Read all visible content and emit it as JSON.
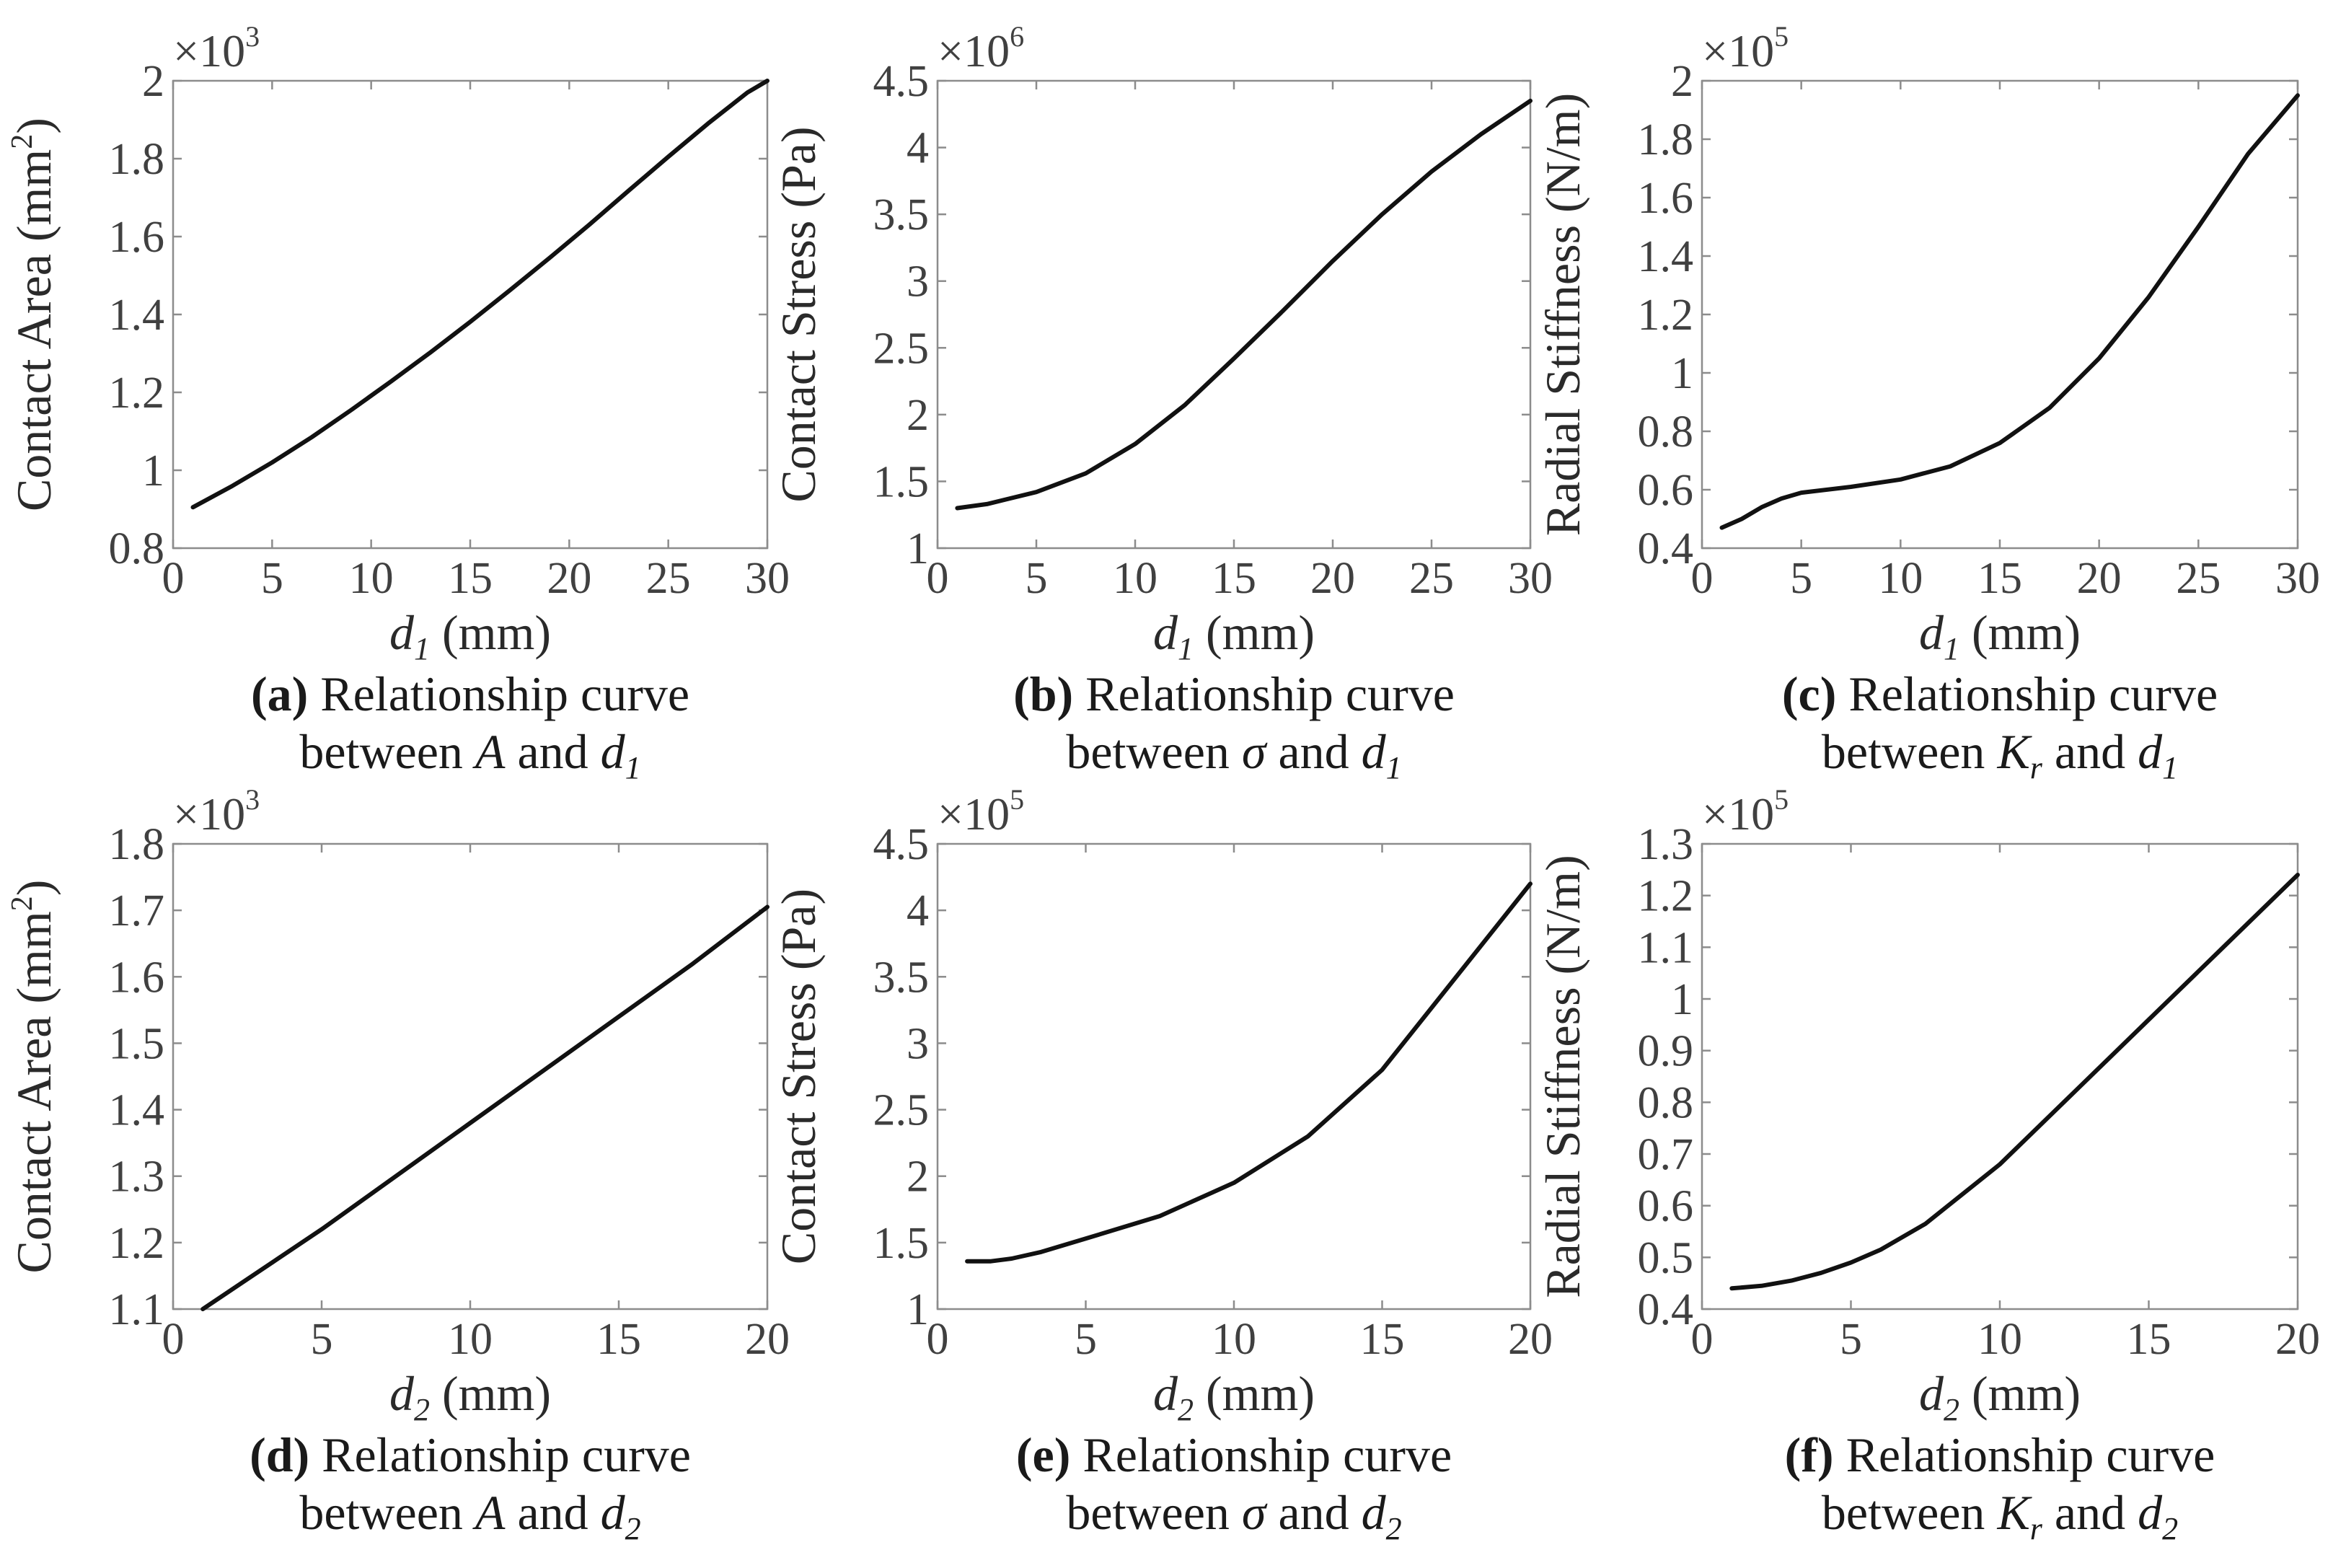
{
  "chart_data": [
    {
      "id": "a",
      "type": "line",
      "multiplier_base": "×10",
      "multiplier_exp": "3",
      "xlabel_var": "d",
      "xlabel_sub": "1",
      "xlabel_unit": "(mm)",
      "ylabel_main": "Contact Area  (mm",
      "ylabel_sup": "2",
      "ylabel_close": ")",
      "xlim": [
        0,
        30
      ],
      "ylim": [
        0.8,
        2
      ],
      "xticks": [
        0,
        5,
        10,
        15,
        20,
        25,
        30
      ],
      "xtick_labels": [
        "0",
        "5",
        "10",
        "15",
        "20",
        "25",
        "30"
      ],
      "yticks": [
        0.8,
        1,
        1.2,
        1.4,
        1.6,
        1.8,
        2
      ],
      "ytick_labels": [
        "0.8",
        "1",
        "1.2",
        "1.4",
        "1.6",
        "1.8",
        "2"
      ],
      "x": [
        1,
        3,
        5,
        7,
        9,
        11,
        13,
        15,
        17,
        19,
        21,
        23,
        25,
        27,
        29,
        30
      ],
      "y": [
        0.905,
        0.96,
        1.02,
        1.085,
        1.155,
        1.228,
        1.303,
        1.381,
        1.462,
        1.545,
        1.63,
        1.718,
        1.805,
        1.89,
        1.97,
        2.0
      ],
      "caption_tag": "(a)",
      "caption_line1": " Relationship curve",
      "caption_line2_pre": "between ",
      "caption_sym": "A",
      "caption_sym_sub": "",
      "caption_and": " and ",
      "caption_var": "d",
      "caption_var_sub": "1"
    },
    {
      "id": "b",
      "type": "line",
      "multiplier_base": "×10",
      "multiplier_exp": "6",
      "xlabel_var": "d",
      "xlabel_sub": "1",
      "xlabel_unit": "(mm)",
      "ylabel_main": "Contact Stress  (Pa)",
      "ylabel_sup": "",
      "ylabel_close": "",
      "xlim": [
        0,
        30
      ],
      "ylim": [
        1,
        4.5
      ],
      "xticks": [
        0,
        5,
        10,
        15,
        20,
        25,
        30
      ],
      "xtick_labels": [
        "0",
        "5",
        "10",
        "15",
        "20",
        "25",
        "30"
      ],
      "yticks": [
        1,
        1.5,
        2,
        2.5,
        3,
        3.5,
        4,
        4.5
      ],
      "ytick_labels": [
        "1",
        "1.5",
        "2",
        "2.5",
        "3",
        "3.5",
        "4",
        "4.5"
      ],
      "x": [
        1,
        2.5,
        5,
        7.5,
        10,
        12.5,
        15,
        17.5,
        20,
        22.5,
        25,
        27.5,
        30
      ],
      "y": [
        1.3,
        1.33,
        1.42,
        1.56,
        1.78,
        2.07,
        2.42,
        2.78,
        3.15,
        3.5,
        3.82,
        4.1,
        4.35
      ],
      "caption_tag": "(b)",
      "caption_line1": " Relationship curve",
      "caption_line2_pre": "between ",
      "caption_sym": "σ",
      "caption_sym_sub": "",
      "caption_and": " and ",
      "caption_var": "d",
      "caption_var_sub": "1"
    },
    {
      "id": "c",
      "type": "line",
      "multiplier_base": "×10",
      "multiplier_exp": "5",
      "xlabel_var": "d",
      "xlabel_sub": "1",
      "xlabel_unit": "(mm)",
      "ylabel_main": "Radial Stiffness  (N/m)",
      "ylabel_sup": "",
      "ylabel_close": "",
      "xlim": [
        0,
        30
      ],
      "ylim": [
        0.4,
        2
      ],
      "xticks": [
        0,
        5,
        10,
        15,
        20,
        25,
        30
      ],
      "xtick_labels": [
        "0",
        "5",
        "10",
        "15",
        "20",
        "25",
        "30"
      ],
      "yticks": [
        0.4,
        0.6,
        0.8,
        1,
        1.2,
        1.4,
        1.6,
        1.8,
        2
      ],
      "ytick_labels": [
        "0.4",
        "0.6",
        "0.8",
        "1",
        "1.2",
        "1.4",
        "1.6",
        "1.8",
        "2"
      ],
      "x": [
        1,
        2,
        3,
        4,
        5,
        7.5,
        10,
        12.5,
        15,
        17.5,
        20,
        22.5,
        25,
        27.5,
        30
      ],
      "y": [
        0.47,
        0.5,
        0.54,
        0.57,
        0.59,
        0.61,
        0.635,
        0.68,
        0.76,
        0.88,
        1.05,
        1.26,
        1.5,
        1.75,
        1.95
      ],
      "caption_tag": "(c)",
      "caption_line1": " Relationship curve",
      "caption_line2_pre": "between ",
      "caption_sym": "K",
      "caption_sym_sub": "r",
      "caption_and": " and ",
      "caption_var": "d",
      "caption_var_sub": "1"
    },
    {
      "id": "d",
      "type": "line",
      "multiplier_base": "×10",
      "multiplier_exp": "3",
      "xlabel_var": "d",
      "xlabel_sub": "2",
      "xlabel_unit": "(mm)",
      "ylabel_main": "Contact Area  (mm",
      "ylabel_sup": "2",
      "ylabel_close": ")",
      "xlim": [
        0,
        20
      ],
      "ylim": [
        1.1,
        1.8
      ],
      "xticks": [
        0,
        5,
        10,
        15,
        20
      ],
      "xtick_labels": [
        "0",
        "5",
        "10",
        "15",
        "20"
      ],
      "yticks": [
        1.1,
        1.2,
        1.3,
        1.4,
        1.5,
        1.6,
        1.7,
        1.8
      ],
      "ytick_labels": [
        "1.1",
        "1.2",
        "1.3",
        "1.4",
        "1.5",
        "1.6",
        "1.7",
        "1.8"
      ],
      "x": [
        1,
        2.5,
        5,
        7.5,
        10,
        12.5,
        15,
        17.5,
        20
      ],
      "y": [
        1.1,
        1.145,
        1.22,
        1.3,
        1.38,
        1.46,
        1.54,
        1.62,
        1.705
      ],
      "caption_tag": "(d)",
      "caption_line1": " Relationship curve",
      "caption_line2_pre": "between ",
      "caption_sym": "A",
      "caption_sym_sub": "",
      "caption_and": " and ",
      "caption_var": "d",
      "caption_var_sub": "2"
    },
    {
      "id": "e",
      "type": "line",
      "multiplier_base": "×10",
      "multiplier_exp": "5",
      "xlabel_var": "d",
      "xlabel_sub": "2",
      "xlabel_unit": "(mm)",
      "ylabel_main": "Contact Stress  (Pa)",
      "ylabel_sup": "",
      "ylabel_close": "",
      "xlim": [
        0,
        20
      ],
      "ylim": [
        1,
        4.5
      ],
      "xticks": [
        0,
        5,
        10,
        15,
        20
      ],
      "xtick_labels": [
        "0",
        "5",
        "10",
        "15",
        "20"
      ],
      "yticks": [
        1,
        1.5,
        2,
        2.5,
        3,
        3.5,
        4,
        4.5
      ],
      "ytick_labels": [
        "1",
        "1.5",
        "2",
        "2.5",
        "3",
        "3.5",
        "4",
        "4.5"
      ],
      "x": [
        1,
        1.8,
        2.5,
        3.5,
        5,
        7.5,
        10,
        12.5,
        15,
        17.5,
        20
      ],
      "y": [
        1.36,
        1.36,
        1.38,
        1.43,
        1.53,
        1.7,
        1.95,
        2.3,
        2.8,
        3.5,
        4.2
      ],
      "caption_tag": "(e)",
      "caption_line1": " Relationship curve",
      "caption_line2_pre": "between ",
      "caption_sym": "σ",
      "caption_sym_sub": "",
      "caption_and": " and ",
      "caption_var": "d",
      "caption_var_sub": "2"
    },
    {
      "id": "f",
      "type": "line",
      "multiplier_base": "×10",
      "multiplier_exp": "5",
      "xlabel_var": "d",
      "xlabel_sub": "2",
      "xlabel_unit": "(mm)",
      "ylabel_main": "Radial Stiffness  (N/m)",
      "ylabel_sup": "",
      "ylabel_close": "",
      "xlim": [
        0,
        20
      ],
      "ylim": [
        0.4,
        1.3
      ],
      "xticks": [
        0,
        5,
        10,
        15,
        20
      ],
      "xtick_labels": [
        "0",
        "5",
        "10",
        "15",
        "20"
      ],
      "yticks": [
        0.4,
        0.5,
        0.6,
        0.7,
        0.8,
        0.9,
        1,
        1.1,
        1.2,
        1.3
      ],
      "ytick_labels": [
        "0.4",
        "0.5",
        "0.6",
        "0.7",
        "0.8",
        "0.9",
        "1",
        "1.1",
        "1.2",
        "1.3"
      ],
      "x": [
        1,
        2,
        3,
        4,
        5,
        6,
        7.5,
        10,
        12.5,
        15,
        17.5,
        20
      ],
      "y": [
        0.44,
        0.445,
        0.455,
        0.47,
        0.49,
        0.515,
        0.565,
        0.68,
        0.82,
        0.96,
        1.1,
        1.24
      ],
      "caption_tag": "(f)",
      "caption_line1": " Relationship curve",
      "caption_line2_pre": "between ",
      "caption_sym": "K",
      "caption_sym_sub": "r",
      "caption_and": " and ",
      "caption_var": "d",
      "caption_var_sub": "2"
    }
  ]
}
